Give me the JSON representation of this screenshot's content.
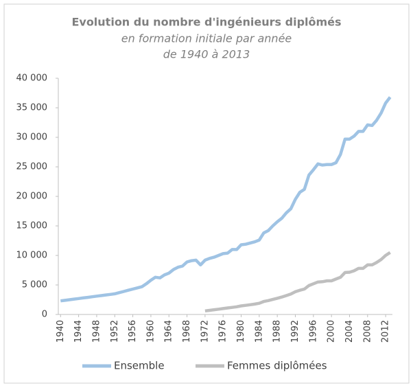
{
  "chart_data": {
    "type": "line",
    "title": "Evolution du nombre d'ingénieurs diplômés",
    "subtitle_lines": [
      "en formation initiale par année",
      "de 1940 à 2013"
    ],
    "x": [
      1940,
      1941,
      1942,
      1943,
      1944,
      1945,
      1946,
      1947,
      1948,
      1949,
      1950,
      1951,
      1952,
      1953,
      1954,
      1955,
      1956,
      1957,
      1958,
      1959,
      1960,
      1961,
      1962,
      1963,
      1964,
      1965,
      1966,
      1967,
      1968,
      1969,
      1970,
      1971,
      1972,
      1973,
      1974,
      1975,
      1976,
      1977,
      1978,
      1979,
      1980,
      1981,
      1982,
      1983,
      1984,
      1985,
      1986,
      1987,
      1988,
      1989,
      1990,
      1991,
      1992,
      1993,
      1994,
      1995,
      1996,
      1997,
      1998,
      1999,
      2000,
      2001,
      2002,
      2003,
      2004,
      2005,
      2006,
      2007,
      2008,
      2009,
      2010,
      2011,
      2012,
      2013
    ],
    "series": [
      {
        "name": "Ensemble",
        "color": "#9fc3e4",
        "values": [
          2300,
          2400,
          2500,
          2600,
          2700,
          2800,
          2900,
          3000,
          3100,
          3200,
          3300,
          3400,
          3500,
          3700,
          3900,
          4100,
          4300,
          4500,
          4700,
          5200,
          5800,
          6300,
          6200,
          6700,
          7000,
          7600,
          8000,
          8200,
          8900,
          9100,
          9200,
          8400,
          9200,
          9500,
          9700,
          10000,
          10300,
          10400,
          11000,
          11000,
          11800,
          11900,
          12100,
          12300,
          12600,
          13800,
          14200,
          15000,
          15700,
          16300,
          17200,
          17900,
          19500,
          20700,
          21200,
          23600,
          24500,
          25500,
          25300,
          25400,
          25400,
          25700,
          27100,
          29700,
          29700,
          30200,
          31000,
          31000,
          32100,
          32000,
          32900,
          34100,
          35800,
          36800
        ]
      },
      {
        "name": "Femmes diplômées",
        "color": "#bfbfbf",
        "values": [
          null,
          null,
          null,
          null,
          null,
          null,
          null,
          null,
          null,
          null,
          null,
          null,
          null,
          null,
          null,
          null,
          null,
          null,
          null,
          null,
          null,
          null,
          null,
          null,
          null,
          null,
          null,
          null,
          null,
          null,
          null,
          null,
          600,
          700,
          800,
          900,
          1000,
          1100,
          1200,
          1300,
          1450,
          1550,
          1650,
          1750,
          1900,
          2200,
          2350,
          2550,
          2750,
          2950,
          3200,
          3450,
          3850,
          4100,
          4300,
          4900,
          5200,
          5500,
          5550,
          5700,
          5700,
          6000,
          6300,
          7100,
          7150,
          7400,
          7800,
          7800,
          8400,
          8400,
          8800,
          9300,
          10000,
          10500
        ]
      }
    ],
    "xlim": [
      1939.5,
      2013.5
    ],
    "xticks": [
      1940,
      1944,
      1948,
      1952,
      1956,
      1960,
      1964,
      1968,
      1972,
      1976,
      1980,
      1984,
      1988,
      1992,
      1996,
      2000,
      2004,
      2008,
      2012
    ],
    "ylim": [
      0,
      40000
    ],
    "yticks": [
      0,
      {
        "value": 5000,
        "label": "5 000"
      },
      {
        "value": 10000,
        "label": "10 000"
      },
      {
        "value": 15000,
        "label": "15 000"
      },
      {
        "value": 20000,
        "label": "20 000"
      },
      {
        "value": 25000,
        "label": "25 000"
      },
      {
        "value": 30000,
        "label": "30 000"
      },
      {
        "value": 35000,
        "label": "35 000"
      },
      {
        "value": 40000,
        "label": "40 000"
      }
    ],
    "grid": false,
    "legend": "bottom"
  }
}
